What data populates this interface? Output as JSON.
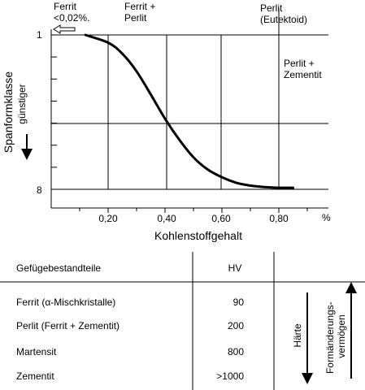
{
  "chart_data": {
    "type": "line",
    "xlabel": "Kohlenstoffgehalt",
    "x_unit": "%",
    "ylabel": "Spanformklasse",
    "ylabel_sub": "günstiger",
    "xlim": [
      0,
      1.0
    ],
    "ylim": [
      1,
      8
    ],
    "x_ticks": [
      {
        "value": 0.2,
        "label": "0,20"
      },
      {
        "value": 0.4,
        "label": "0,40"
      },
      {
        "value": 0.6,
        "label": "0,60"
      },
      {
        "value": 0.8,
        "label": "0,80"
      }
    ],
    "y_ticks": [
      {
        "value": 1,
        "label": "1"
      },
      {
        "value": 8,
        "label": "8"
      }
    ],
    "series": [
      {
        "x": [
          0.12,
          0.2,
          0.25,
          0.3,
          0.35,
          0.4,
          0.45,
          0.5,
          0.55,
          0.6,
          0.65,
          0.7,
          0.75,
          0.8,
          0.85
        ],
        "y": [
          1.0,
          1.35,
          1.85,
          2.65,
          3.7,
          4.8,
          5.75,
          6.55,
          7.1,
          7.45,
          7.7,
          7.83,
          7.9,
          7.93,
          7.93
        ]
      }
    ],
    "regions": [
      {
        "lines": [
          "Ferrit",
          "<0,02%."
        ]
      },
      {
        "lines": [
          "Ferrit +",
          "Perlit"
        ]
      },
      {
        "lines": [
          "Perlit",
          "(Eutektoid)"
        ]
      },
      {
        "lines": [
          "Perlit +",
          "Zementit"
        ]
      }
    ]
  },
  "table": {
    "header_label": "Gefügebestandteile",
    "header_value": "HV",
    "rows": [
      {
        "label": "Ferrit (α-Mischkristalle)",
        "value": "90"
      },
      {
        "label": "Perlit (Ferrit + Zementit)",
        "value": "200"
      },
      {
        "label": "Martensit",
        "value": "800"
      },
      {
        "label": "Zementit",
        "value": ">1000"
      }
    ],
    "arrow_down_label": "Härte",
    "arrow_up_label_lines": [
      "Formänderungs-",
      "vermögen"
    ]
  }
}
